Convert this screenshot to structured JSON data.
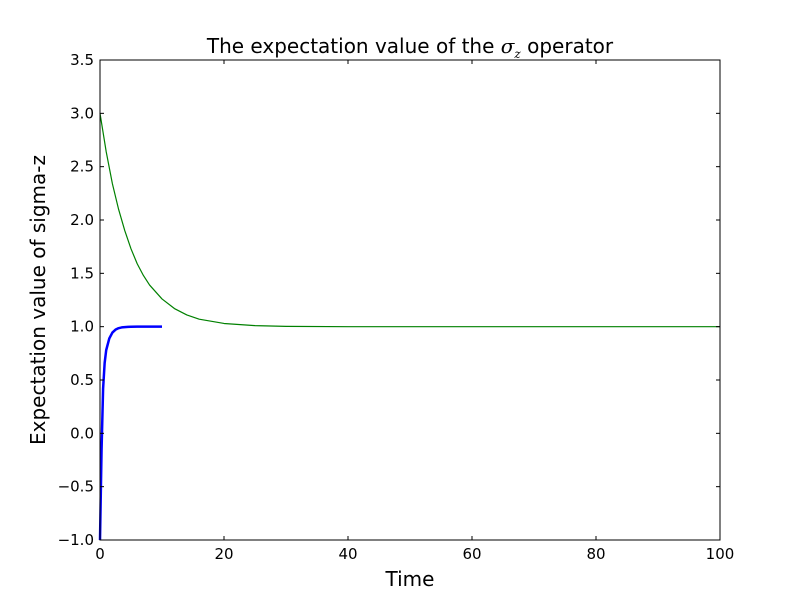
{
  "chart_data": {
    "type": "line",
    "title": {
      "prefix": "The expectation value of the ",
      "symbol": "σ",
      "subscript": "z",
      "suffix": " operator"
    },
    "xlabel": "Time",
    "ylabel": "Expectation value of sigma-z",
    "xlim": [
      0,
      100
    ],
    "ylim": [
      -1.0,
      3.5
    ],
    "xticks": [
      0,
      20,
      40,
      60,
      80,
      100
    ],
    "xtick_labels": [
      "0",
      "20",
      "40",
      "60",
      "80",
      "100"
    ],
    "yticks": [
      -1.0,
      -0.5,
      0.0,
      0.5,
      1.0,
      1.5,
      2.0,
      2.5,
      3.0,
      3.5
    ],
    "ytick_labels": [
      "−1.0",
      "−0.5",
      "0.0",
      "0.5",
      "1.0",
      "1.5",
      "2.0",
      "2.5",
      "3.0",
      "3.5"
    ],
    "grid": false,
    "series": [
      {
        "color": "#0000ff",
        "linewidth": "thick",
        "x": [
          0,
          0.25,
          0.5,
          0.75,
          1.0,
          1.5,
          2.0,
          2.5,
          3.0,
          3.5,
          4.0,
          4.5,
          5.0,
          6.0,
          7.0,
          8.0,
          9.0,
          10.0
        ],
        "y": [
          -1.0,
          -0.16,
          0.42,
          0.66,
          0.78,
          0.89,
          0.945,
          0.972,
          0.986,
          0.993,
          0.996,
          0.998,
          0.999,
          1.0,
          1.0,
          1.0,
          1.0,
          1.0
        ]
      },
      {
        "color": "#008000",
        "linewidth": "thin",
        "x": [
          0,
          1,
          2,
          3,
          4,
          5,
          6,
          7,
          8,
          10,
          12,
          14,
          16,
          18,
          20,
          25,
          30,
          40,
          50,
          60,
          70,
          80,
          90,
          100
        ],
        "y": [
          3.0,
          2.64,
          2.34,
          2.1,
          1.9,
          1.73,
          1.59,
          1.48,
          1.39,
          1.26,
          1.17,
          1.11,
          1.07,
          1.05,
          1.03,
          1.01,
          1.003,
          1.0,
          1.0,
          1.0,
          1.0,
          1.0,
          1.0,
          1.0
        ]
      }
    ]
  }
}
